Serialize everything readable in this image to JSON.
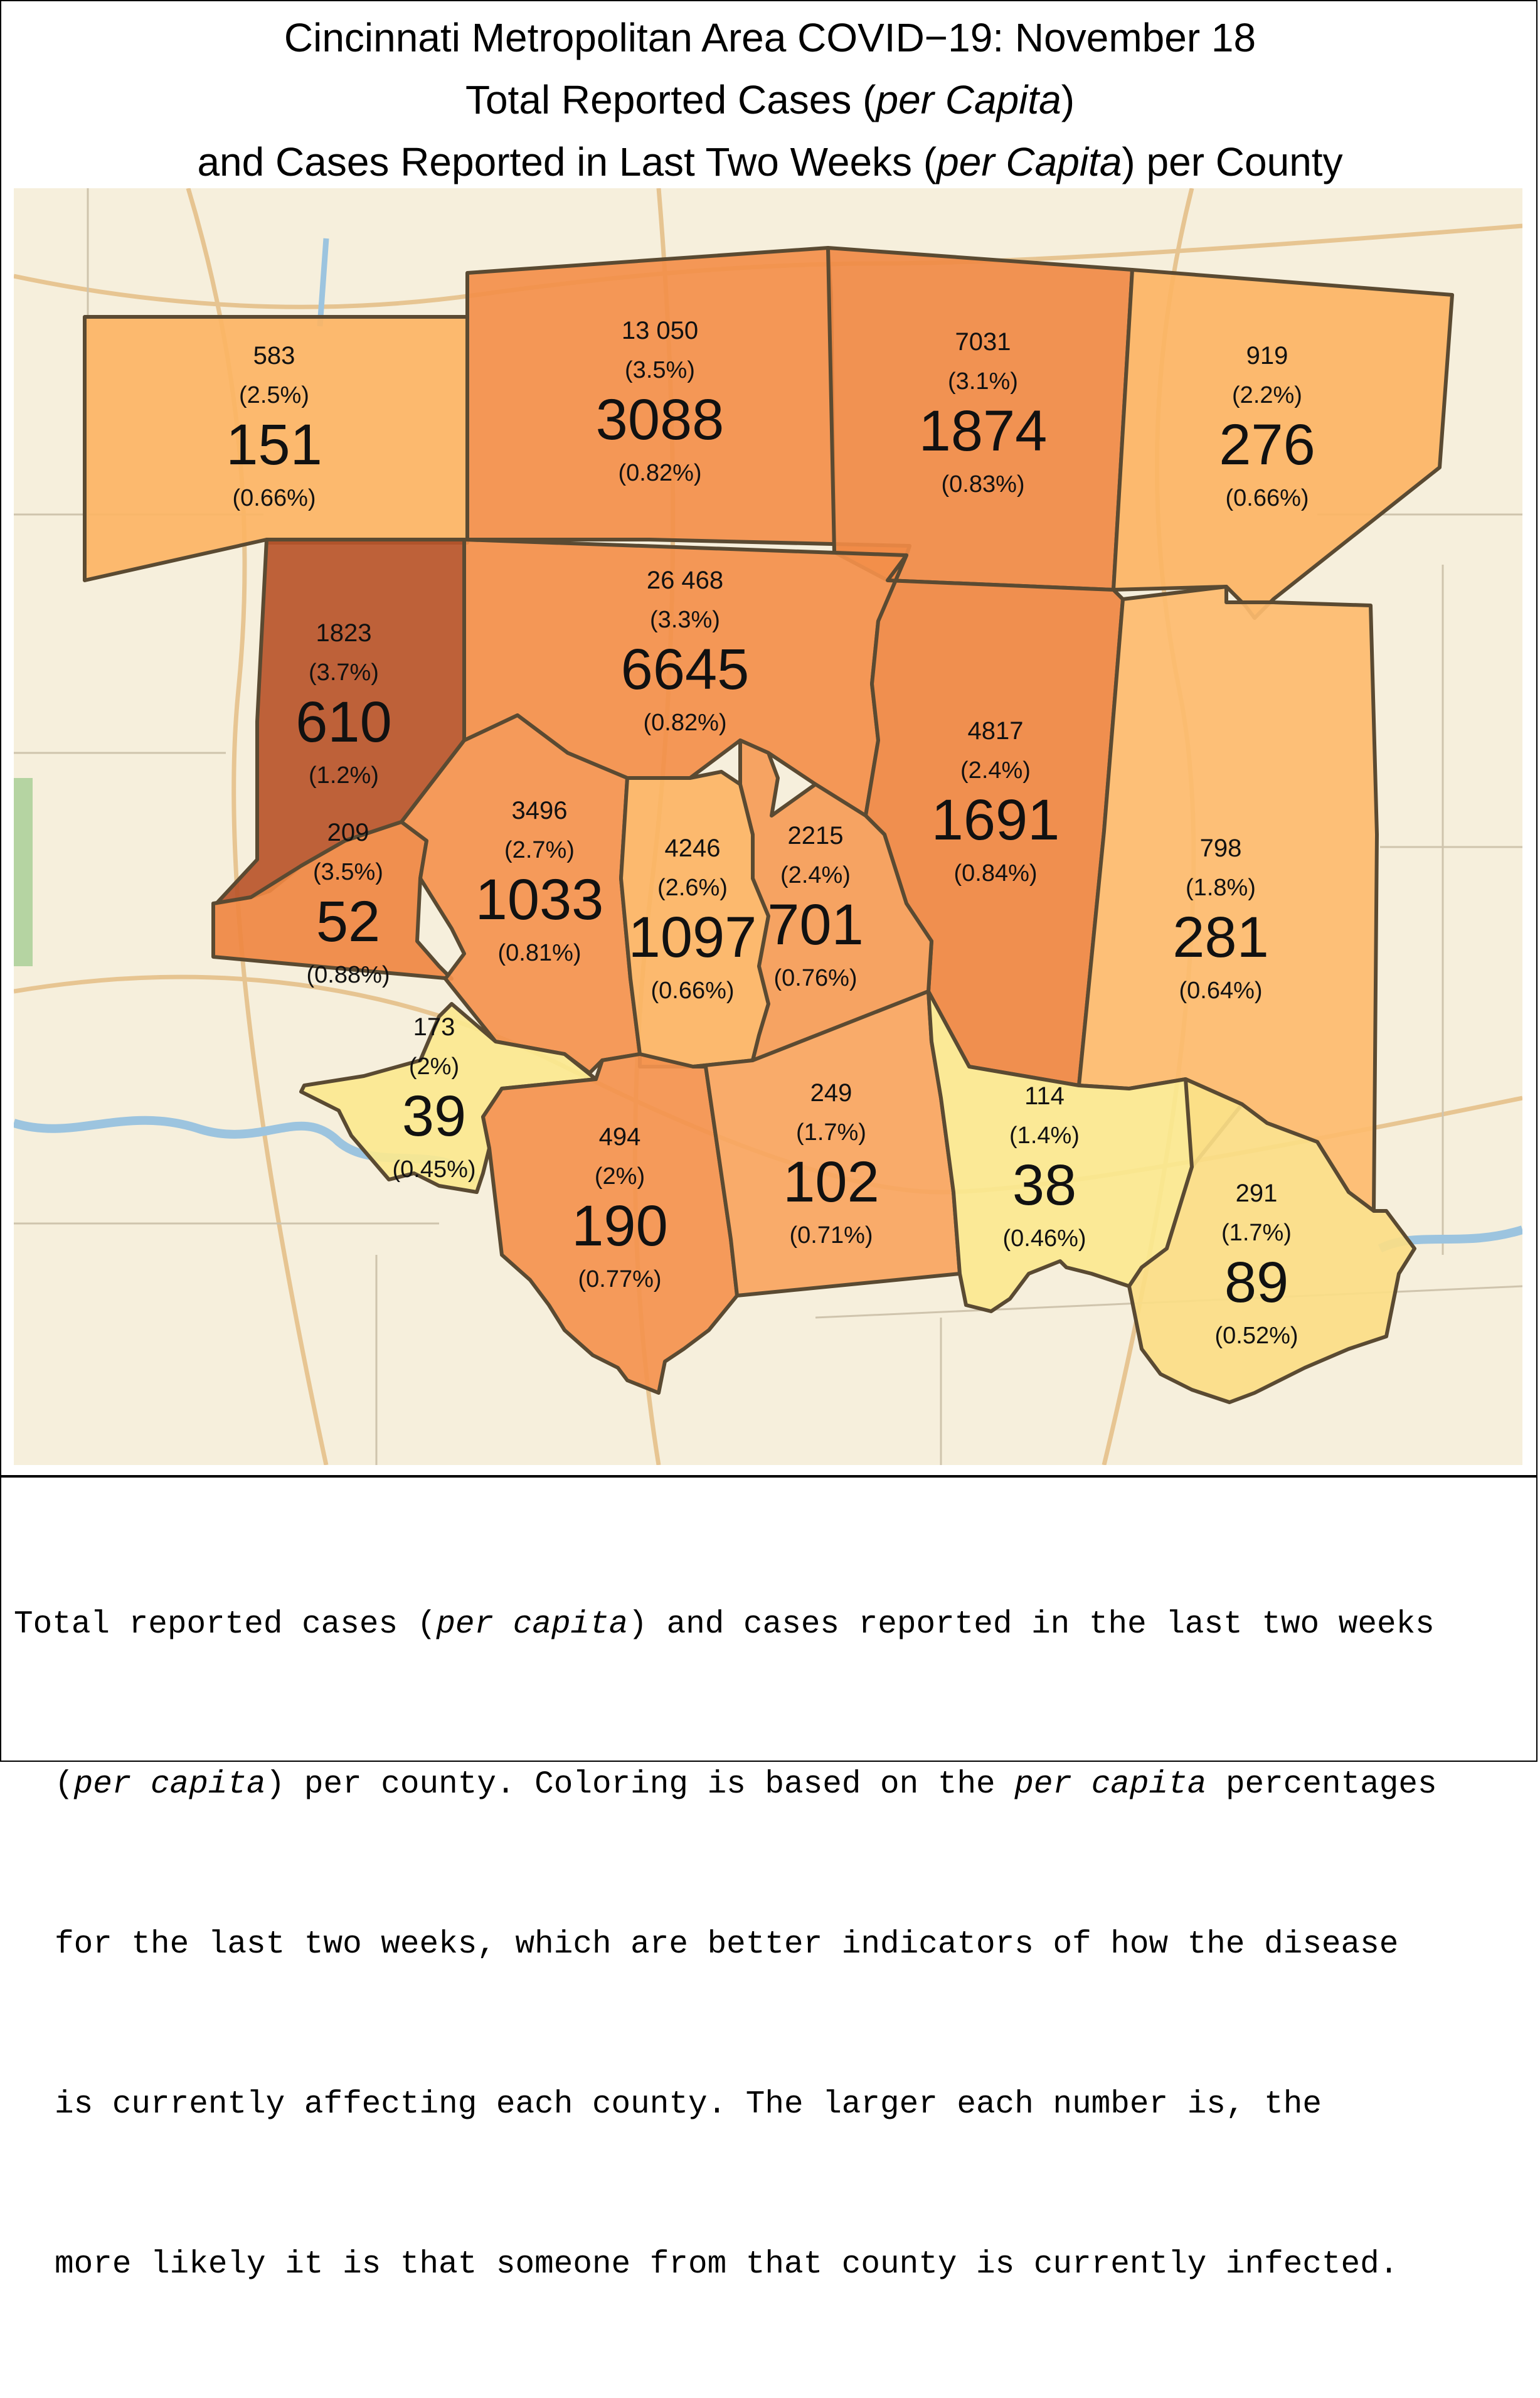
{
  "title": {
    "line1": "Cincinnati Metropolitan Area COVID−19: November 18",
    "line2_pre": "Total Reported Cases (",
    "line2_em": "per Capita",
    "line2_post": ")",
    "line3_pre": "and Cases Reported in Last Two Weeks (",
    "line3_em": "per Capita",
    "line3_post": ") per County"
  },
  "legend_colors": {
    "pale_yellow": "#fbe88f",
    "light_orange": "#fcb86a",
    "orange": "#f6a15c",
    "dark_orange": "#f0893e",
    "brown": "#b8552a",
    "background_map": "#f6efdc"
  },
  "counties": [
    {
      "id": "northwest",
      "total": "583",
      "total_pct": "(2.5%)",
      "recent": "151",
      "recent_pct": "(0.66%)",
      "color": "#fcb464"
    },
    {
      "id": "north-central",
      "total": "13 050",
      "total_pct": "(3.5%)",
      "recent": "3088",
      "recent_pct": "(0.82%)",
      "color": "#f38f4a"
    },
    {
      "id": "north-east-central",
      "total": "7031",
      "total_pct": "(3.1%)",
      "recent": "1874",
      "recent_pct": "(0.83%)",
      "color": "#f08a45"
    },
    {
      "id": "northeast",
      "total": "919",
      "total_pct": "(2.2%)",
      "recent": "276",
      "recent_pct": "(0.66%)",
      "color": "#fcb464"
    },
    {
      "id": "west",
      "total": "1823",
      "total_pct": "(3.7%)",
      "recent": "610",
      "recent_pct": "(1.2%)",
      "color": "#b8552a"
    },
    {
      "id": "central",
      "total": "26 468",
      "total_pct": "(3.3%)",
      "recent": "6645",
      "recent_pct": "(0.82%)",
      "color": "#f38f4a"
    },
    {
      "id": "east-central",
      "total": "4817",
      "total_pct": "(2.4%)",
      "recent": "1691",
      "recent_pct": "(0.84%)",
      "color": "#ef8742"
    },
    {
      "id": "southwest-small",
      "total": "209",
      "total_pct": "(3.5%)",
      "recent": "52",
      "recent_pct": "(0.88%)",
      "color": "#ef8742"
    },
    {
      "id": "boone",
      "total": "3496",
      "total_pct": "(2.7%)",
      "recent": "1033",
      "recent_pct": "(0.81%)",
      "color": "#f4934e"
    },
    {
      "id": "kenton",
      "total": "4246",
      "total_pct": "(2.6%)",
      "recent": "1097",
      "recent_pct": "(0.66%)",
      "color": "#fcb464"
    },
    {
      "id": "campbell",
      "total": "2215",
      "total_pct": "(2.4%)",
      "recent": "701",
      "recent_pct": "(0.76%)",
      "color": "#f59c57"
    },
    {
      "id": "east",
      "total": "798",
      "total_pct": "(1.8%)",
      "recent": "281",
      "recent_pct": "(0.64%)",
      "color": "#fdbb6e"
    },
    {
      "id": "gallatin",
      "total": "173",
      "total_pct": "(2%)",
      "recent": "39",
      "recent_pct": "(0.45%)",
      "color": "#fbe88f"
    },
    {
      "id": "grant",
      "total": "494",
      "total_pct": "(2%)",
      "recent": "190",
      "recent_pct": "(0.77%)",
      "color": "#f4934e"
    },
    {
      "id": "pendleton",
      "total": "249",
      "total_pct": "(1.7%)",
      "recent": "102",
      "recent_pct": "(0.71%)",
      "color": "#f9a55f"
    },
    {
      "id": "bracken",
      "total": "114",
      "total_pct": "(1.4%)",
      "recent": "38",
      "recent_pct": "(0.46%)",
      "color": "#fbe88f"
    },
    {
      "id": "mason",
      "total": "291",
      "total_pct": "(1.7%)",
      "recent": "89",
      "recent_pct": "(0.52%)",
      "color": "#fbdd86"
    }
  ],
  "caption": {
    "l1_a": "Total reported cases (",
    "l1_em": "per capita",
    "l1_b": ") and cases reported in the last two weeks",
    "l2_a": "(",
    "l2_em1": "per capita",
    "l2_b": ") per county. Coloring is based on the ",
    "l2_em2": "per capita",
    "l2_c": " percentages",
    "l3": "for the last two weeks, which are better indicators of how the disease",
    "l4": "is currently affecting each county. The larger each number is, the",
    "l5": "more likely it is that someone from that county is currently infected."
  }
}
